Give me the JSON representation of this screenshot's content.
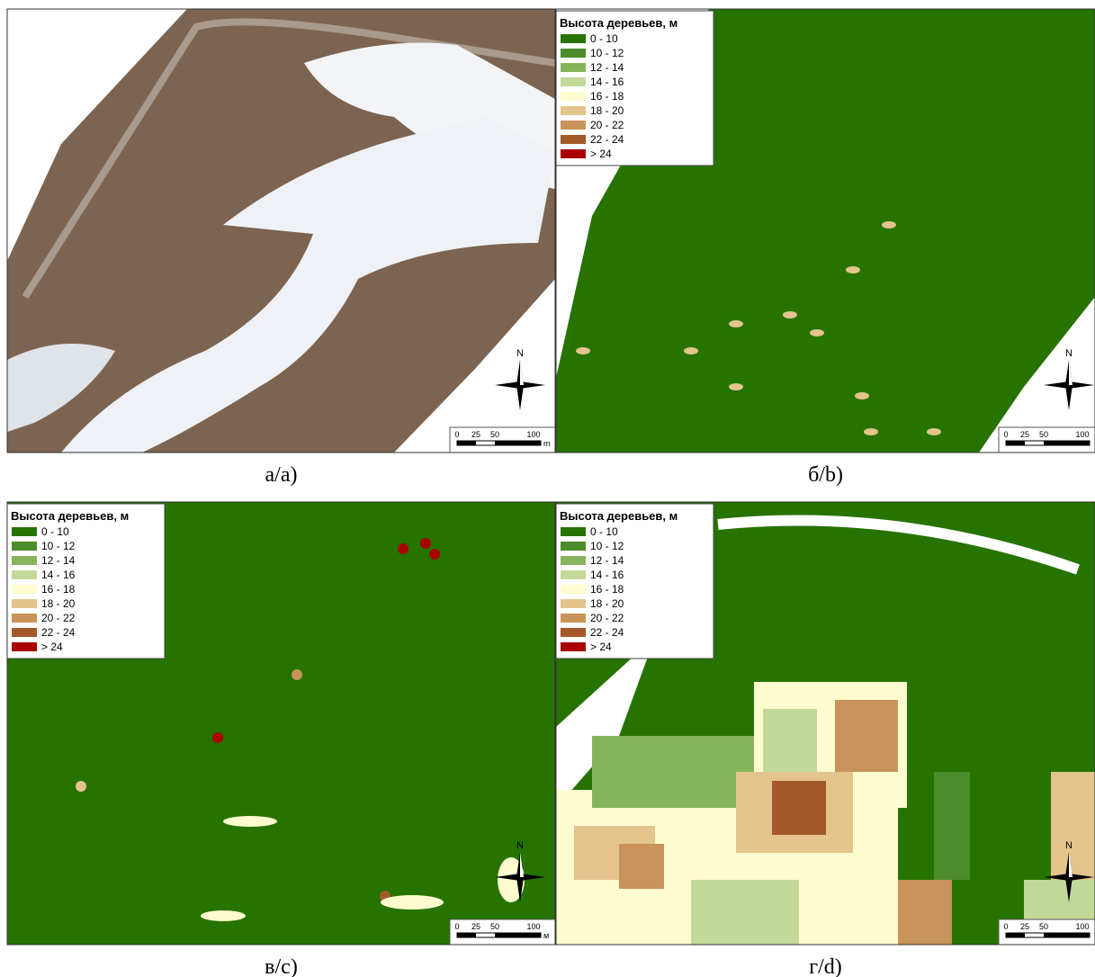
{
  "legend": {
    "title": "Высота деревьев, м",
    "items": [
      {
        "label": "0 - 10",
        "color": "#267300"
      },
      {
        "label": "10 - 12",
        "color": "#4c8c2a"
      },
      {
        "label": "12 - 14",
        "color": "#86b45a"
      },
      {
        "label": "14 - 16",
        "color": "#c3d99a"
      },
      {
        "label": "16 - 18",
        "color": "#fffccf"
      },
      {
        "label": "18 - 20",
        "color": "#e3c48d"
      },
      {
        "label": "20 - 22",
        "color": "#c99459"
      },
      {
        "label": "22 - 24",
        "color": "#a3592a"
      },
      {
        "label": "> 24",
        "color": "#a80000"
      }
    ]
  },
  "north_label": "N",
  "scale_labels": [
    "0",
    "25",
    "50",
    "100"
  ],
  "panels": [
    {
      "caption": "а/a)",
      "legend": false,
      "scale_unit": "m"
    },
    {
      "caption": "б/b)",
      "legend": true
    },
    {
      "caption": "в/c)",
      "legend": true,
      "scale_unit": "м"
    },
    {
      "caption": "г/d)",
      "legend": true
    }
  ]
}
